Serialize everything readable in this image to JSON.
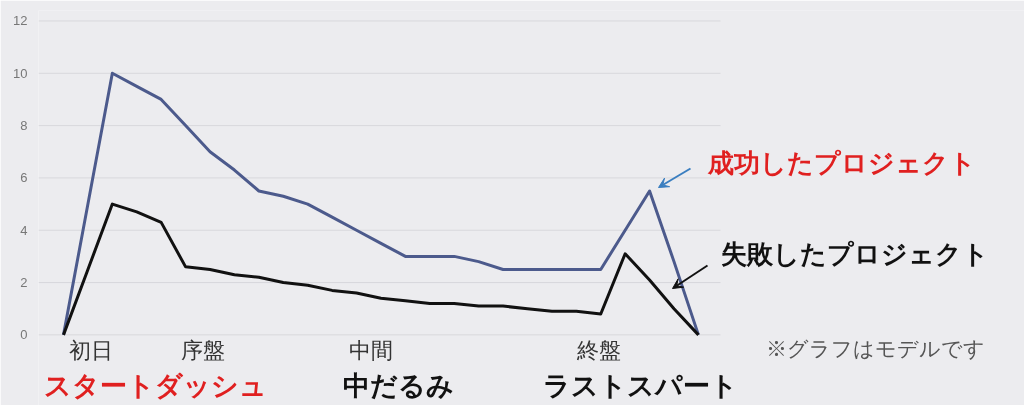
{
  "chart_data": {
    "type": "line",
    "categories": [
      null,
      null,
      null,
      null,
      null,
      null,
      null,
      null,
      null,
      null,
      null,
      null,
      null,
      null,
      null,
      null,
      null,
      null,
      null,
      null,
      null,
      null,
      null,
      null,
      null,
      null,
      null
    ],
    "series": [
      {
        "color": "#4c5a8c",
        "values": [
          0,
          5,
          10,
          9.5,
          9,
          8,
          7,
          6.3,
          5.5,
          5.3,
          5,
          4.5,
          4,
          3.5,
          3,
          3,
          3,
          2.8,
          2.5,
          2.5,
          2.5,
          2.5,
          2.5,
          4,
          5.5,
          2.8,
          0
        ]
      },
      {
        "color": "#111111",
        "values": [
          0,
          2.5,
          5,
          4.7,
          4.3,
          2.6,
          2.5,
          2.3,
          2.2,
          2.0,
          1.9,
          1.7,
          1.6,
          1.4,
          1.3,
          1.2,
          1.2,
          1.1,
          1.1,
          1.0,
          0.9,
          0.9,
          0.8,
          3.1,
          2.1,
          1.0,
          0
        ]
      }
    ],
    "ylim": [
      -2.7,
      12.4
    ],
    "yticks": [
      0,
      2,
      4,
      6,
      8,
      10,
      12
    ],
    "grid": "y",
    "marker": "none",
    "line_style": "solid",
    "annotations": [
      "成功したプロジェクト",
      "失敗したプロジェクト",
      "※グラフはモデルです",
      "スタートダッシュ",
      "中だるみ",
      "ラストスパート",
      "初日",
      "序盤",
      "中間",
      "終盤"
    ]
  }
}
